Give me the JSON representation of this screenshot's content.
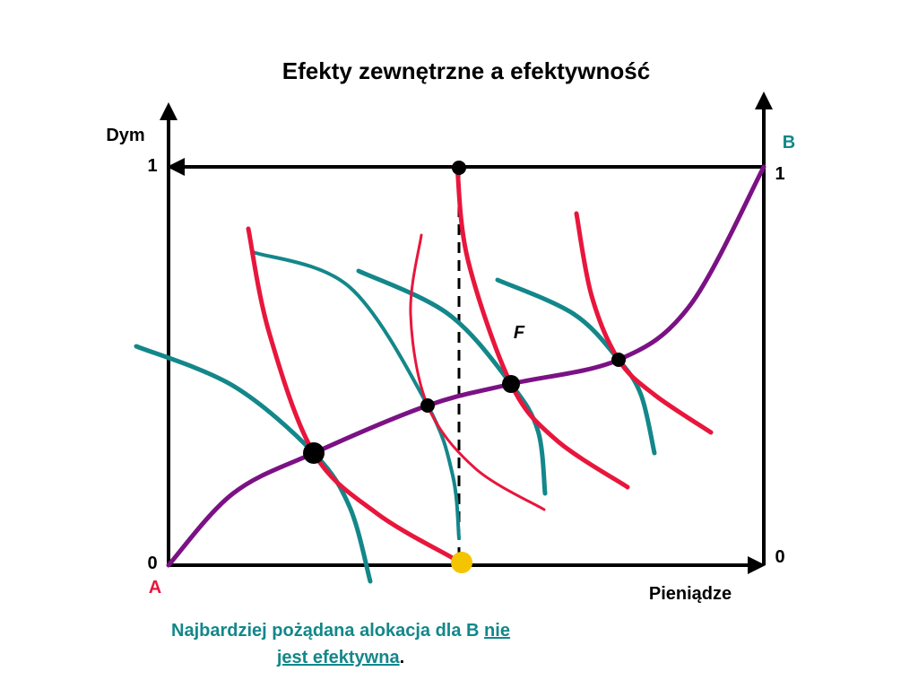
{
  "title": "Efekty zewnętrzne a efektywność",
  "axes": {
    "y_label": "Dym",
    "x_label": "Pieniądze",
    "origin_a": {
      "label": "A",
      "zero": "0",
      "one": "1"
    },
    "origin_b": {
      "label": "B",
      "zero": "0",
      "one": "1"
    }
  },
  "point_label": "F",
  "caption": {
    "text": "Najbardziej pożądana alokacja dla B",
    "emphasis_1": "nie",
    "emphasis_2": "jest efektywna",
    "end": "."
  }
}
